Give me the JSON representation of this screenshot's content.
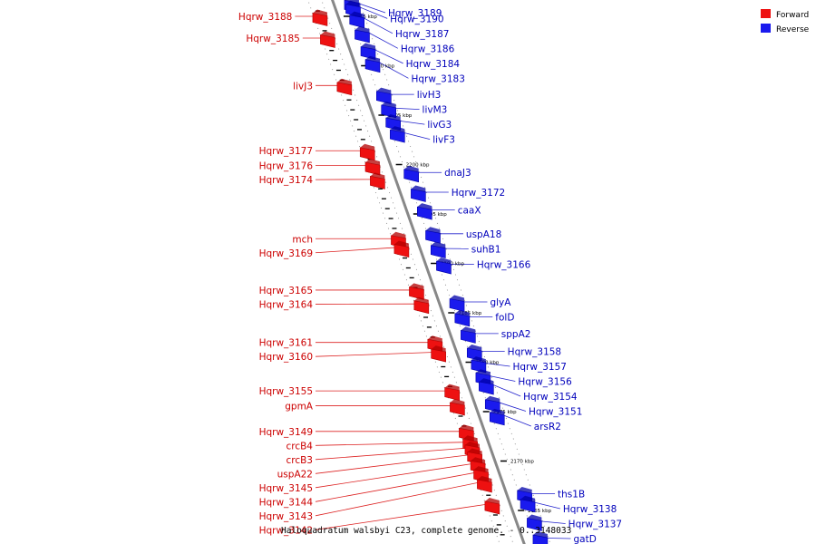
{
  "colors": {
    "forward": "#ee1111",
    "forward_dark": "#b30000",
    "reverse": "#1a1aee",
    "reverse_dark": "#0000a8",
    "axis": "#888888",
    "leader_forward": "#dd2222",
    "leader_reverse": "#2222cc"
  },
  "legend": [
    {
      "label": "Forward",
      "strand": "forward"
    },
    {
      "label": "Reverse",
      "strand": "reverse"
    }
  ],
  "caption": "Haloquadratum walsbyi C23, complete genome. - 0..3148033",
  "axis_ticks": [
    {
      "label": "2215 kbp",
      "kbp": 2215
    },
    {
      "label": "2210 kbp",
      "kbp": 2210
    },
    {
      "label": "2205 kbp",
      "kbp": 2205
    },
    {
      "label": "2200 kbp",
      "kbp": 2200
    },
    {
      "label": "2195 kbp",
      "kbp": 2195
    },
    {
      "label": "2190 kbp",
      "kbp": 2190
    },
    {
      "label": "2185 kbp",
      "kbp": 2185
    },
    {
      "label": "2180 kbp",
      "kbp": 2180
    },
    {
      "label": "2175 kbp",
      "kbp": 2175
    },
    {
      "label": "2170 kbp",
      "kbp": 2170
    },
    {
      "label": "2165 kbp",
      "kbp": 2165
    }
  ],
  "genes": [
    {
      "name": "Hqrw_3189",
      "strand": "reverse",
      "kbp": 2216.3
    },
    {
      "name": "Hqrw_3190",
      "strand": "reverse",
      "kbp": 2215.9
    },
    {
      "name": "Hqrw_3188",
      "strand": "forward",
      "kbp": 2215.0
    },
    {
      "name": "Hqrw_3187",
      "strand": "reverse",
      "kbp": 2214.8
    },
    {
      "name": "Hqrw_3186",
      "strand": "reverse",
      "kbp": 2213.3
    },
    {
      "name": "Hqrw_3185",
      "strand": "forward",
      "kbp": 2212.8
    },
    {
      "name": "Hqrw_3184",
      "strand": "reverse",
      "kbp": 2211.6
    },
    {
      "name": "Hqrw_3183",
      "strand": "reverse",
      "kbp": 2210.3
    },
    {
      "name": "livJ3",
      "strand": "forward",
      "kbp": 2208.0
    },
    {
      "name": "livH3",
      "strand": "reverse",
      "kbp": 2207.1
    },
    {
      "name": "livM3",
      "strand": "reverse",
      "kbp": 2205.7
    },
    {
      "name": "livG3",
      "strand": "reverse",
      "kbp": 2204.4
    },
    {
      "name": "livF3",
      "strand": "reverse",
      "kbp": 2203.2
    },
    {
      "name": "Hqrw_3177",
      "strand": "forward",
      "kbp": 2201.4
    },
    {
      "name": "Hqrw_3176",
      "strand": "forward",
      "kbp": 2199.9
    },
    {
      "name": "dnaJ3",
      "strand": "reverse",
      "kbp": 2199.2
    },
    {
      "name": "Hqrw_3174",
      "strand": "forward",
      "kbp": 2198.5
    },
    {
      "name": "Hqrw_3172",
      "strand": "reverse",
      "kbp": 2197.2
    },
    {
      "name": "caaX",
      "strand": "reverse",
      "kbp": 2195.4
    },
    {
      "name": "uspA18",
      "strand": "reverse",
      "kbp": 2193.0
    },
    {
      "name": "mch",
      "strand": "forward",
      "kbp": 2192.5
    },
    {
      "name": "Hqrw_3169",
      "strand": "forward",
      "kbp": 2191.6
    },
    {
      "name": "suhB1",
      "strand": "reverse",
      "kbp": 2191.5
    },
    {
      "name": "Hqrw_3166",
      "strand": "reverse",
      "kbp": 2189.9
    },
    {
      "name": "Hqrw_3165",
      "strand": "forward",
      "kbp": 2187.3
    },
    {
      "name": "glyA",
      "strand": "reverse",
      "kbp": 2186.1
    },
    {
      "name": "Hqrw_3164",
      "strand": "forward",
      "kbp": 2185.9
    },
    {
      "name": "folD",
      "strand": "reverse",
      "kbp": 2184.6
    },
    {
      "name": "sppA2",
      "strand": "reverse",
      "kbp": 2182.9
    },
    {
      "name": "Hqrw_3161",
      "strand": "forward",
      "kbp": 2182.0
    },
    {
      "name": "Hqrw_3158",
      "strand": "reverse",
      "kbp": 2181.1
    },
    {
      "name": "Hqrw_3160",
      "strand": "forward",
      "kbp": 2181.0
    },
    {
      "name": "Hqrw_3157",
      "strand": "reverse",
      "kbp": 2179.9
    },
    {
      "name": "Hqrw_3156",
      "strand": "reverse",
      "kbp": 2178.6
    },
    {
      "name": "Hqrw_3154",
      "strand": "reverse",
      "kbp": 2177.7
    },
    {
      "name": "Hqrw_3155",
      "strand": "forward",
      "kbp": 2177.1
    },
    {
      "name": "Hqrw_3151",
      "strand": "reverse",
      "kbp": 2175.9
    },
    {
      "name": "gpmA",
      "strand": "forward",
      "kbp": 2175.6
    },
    {
      "name": "arsR2",
      "strand": "reverse",
      "kbp": 2174.6
    },
    {
      "name": "Hqrw_3149",
      "strand": "forward",
      "kbp": 2173.0
    },
    {
      "name": "crcB4",
      "strand": "forward",
      "kbp": 2171.9
    },
    {
      "name": "crcB3",
      "strand": "forward",
      "kbp": 2171.3
    },
    {
      "name": "uspA22",
      "strand": "forward",
      "kbp": 2170.6
    },
    {
      "name": "Hqrw_3145",
      "strand": "forward",
      "kbp": 2169.7
    },
    {
      "name": "Hqrw_3144",
      "strand": "forward",
      "kbp": 2168.8
    },
    {
      "name": "Hqrw_3143",
      "strand": "forward",
      "kbp": 2167.8
    },
    {
      "name": "ths1B",
      "strand": "reverse",
      "kbp": 2166.7
    },
    {
      "name": "Hqrw_3138",
      "strand": "reverse",
      "kbp": 2165.8
    },
    {
      "name": "Hqrw_3142",
      "strand": "forward",
      "kbp": 2165.6
    },
    {
      "name": "Hqrw_3137",
      "strand": "reverse",
      "kbp": 2163.9
    },
    {
      "name": "gatD",
      "strand": "reverse",
      "kbp": 2162.2
    }
  ]
}
